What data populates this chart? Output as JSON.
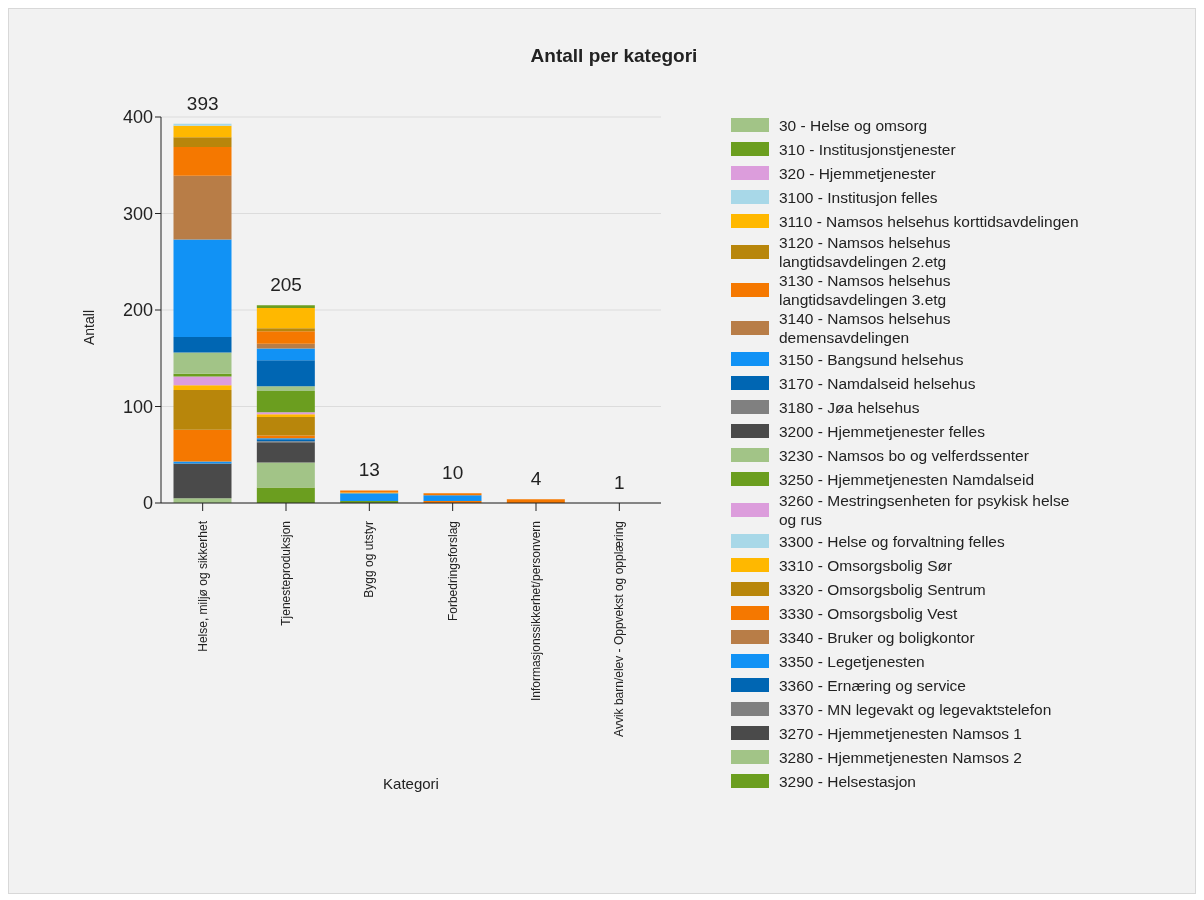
{
  "chart_data": {
    "type": "bar",
    "title": "Antall per kategori",
    "xlabel": "Kategori",
    "ylabel": "Antall",
    "stacked": true,
    "grid": "y",
    "legend": "right",
    "categories": [
      "Helse, miljø og sikkerhet",
      "Tjenesteproduksjon",
      "Bygg og utstyr",
      "Forbedringsforslag",
      "Informasjonssikkerhet/personvern",
      "Avvik barn/elev - Oppvekst og opplæring"
    ],
    "ylim": [
      0,
      400
    ],
    "yticks": [
      0,
      100,
      200,
      300,
      400
    ],
    "totals": [
      "393",
      "205",
      "13",
      "10",
      "4",
      "1"
    ],
    "series": [
      {
        "name": "3290 - Helsestasjon",
        "color": "#6b9e1f",
        "values": [
          null,
          16,
          2,
          null,
          null,
          null
        ]
      },
      {
        "name": "3280 - Hjemmetjenesten Namsos 2",
        "color": "#a2c487",
        "values": [
          5,
          26,
          null,
          null,
          null,
          null
        ]
      },
      {
        "name": "3270 - Hjemmetjenesten Namsos 1",
        "color": "#4a4a4a",
        "values": [
          36,
          21,
          null,
          null,
          null,
          null
        ]
      },
      {
        "name": "3370 - MN legevakt og legevaktstelefon",
        "color": "#808080",
        "values": [
          null,
          1,
          null,
          null,
          null,
          null
        ]
      },
      {
        "name": "3360 - Ernæring og service",
        "color": "#0066b3",
        "values": [
          null,
          2,
          null,
          null,
          null,
          null
        ]
      },
      {
        "name": "3350 - Legetjenesten",
        "color": "#1192f5",
        "values": [
          2,
          1,
          8,
          null,
          null,
          null
        ]
      },
      {
        "name": "3340 - Bruker og boligkontor",
        "color": "#b87d47",
        "values": [
          null,
          null,
          null,
          null,
          null,
          null
        ]
      },
      {
        "name": "3330 - Omsorgsbolig Vest",
        "color": "#f57800",
        "values": [
          33,
          3,
          null,
          2,
          null,
          null
        ]
      },
      {
        "name": "3320 - Omsorgsbolig Sentrum",
        "color": "#b8860b",
        "values": [
          41,
          19,
          null,
          null,
          null,
          null
        ]
      },
      {
        "name": "3310 - Omsorgsbolig Sør",
        "color": "#ffb800",
        "values": [
          5,
          3,
          1,
          null,
          null,
          null
        ]
      },
      {
        "name": "3300 - Helse og forvaltning felles",
        "color": "#a8d8e8",
        "values": [
          null,
          null,
          null,
          null,
          null,
          null
        ]
      },
      {
        "name": "3260 - Mestringsenheten for psykisk helse og rus",
        "color": "#dc9ddc",
        "values": [
          9,
          2,
          null,
          null,
          null,
          null
        ]
      },
      {
        "name": "3250 - Hjemmetjenesten Namdalseid",
        "color": "#6b9e1f",
        "values": [
          3,
          22,
          null,
          null,
          null,
          null
        ]
      },
      {
        "name": "3230 - Namsos bo og velferdssenter",
        "color": "#a2c487",
        "values": [
          22,
          5,
          null,
          null,
          null,
          null
        ]
      },
      {
        "name": "3200 - Hjemmetjenester felles",
        "color": "#4a4a4a",
        "values": [
          null,
          null,
          null,
          null,
          null,
          null
        ]
      },
      {
        "name": "3180 - Jøa helsehus",
        "color": "#808080",
        "values": [
          null,
          null,
          null,
          null,
          null,
          null
        ]
      },
      {
        "name": "3170 - Namdalseid helsehus",
        "color": "#0066b3",
        "values": [
          16,
          27,
          null,
          null,
          null,
          null
        ]
      },
      {
        "name": "3150 - Bangsund helsehus",
        "color": "#1192f5",
        "values": [
          101,
          12,
          null,
          6,
          null,
          null
        ]
      },
      {
        "name": "3140 - Namsos helsehus demensavdelingen",
        "color": "#b87d47",
        "values": [
          66,
          5,
          null,
          null,
          null,
          null
        ]
      },
      {
        "name": "3130 - Namsos helsehus langtidsavdelingen 3.etg",
        "color": "#f57800",
        "values": [
          30,
          13,
          2,
          2,
          4,
          null
        ]
      },
      {
        "name": "3120 - Namsos helsehus langtidsavdelingen 2.etg",
        "color": "#b8860b",
        "values": [
          10,
          3,
          null,
          null,
          null,
          null
        ]
      },
      {
        "name": "3110 - Namsos helsehus korttidsavdelingen",
        "color": "#ffb800",
        "values": [
          12,
          21,
          null,
          null,
          null,
          null
        ]
      },
      {
        "name": "3100 - Institusjon felles",
        "color": "#a8d8e8",
        "values": [
          2,
          null,
          null,
          null,
          null,
          null
        ]
      },
      {
        "name": "320 - Hjemmetjenester",
        "color": "#dc9ddc",
        "values": [
          null,
          null,
          null,
          null,
          null,
          null
        ]
      },
      {
        "name": "310 - Institusjonstjenester",
        "color": "#6b9e1f",
        "values": [
          null,
          3,
          null,
          null,
          null,
          null
        ]
      },
      {
        "name": "30 - Helse og omsorg",
        "color": "#a2c487",
        "values": [
          null,
          null,
          null,
          null,
          null,
          null
        ]
      }
    ]
  }
}
